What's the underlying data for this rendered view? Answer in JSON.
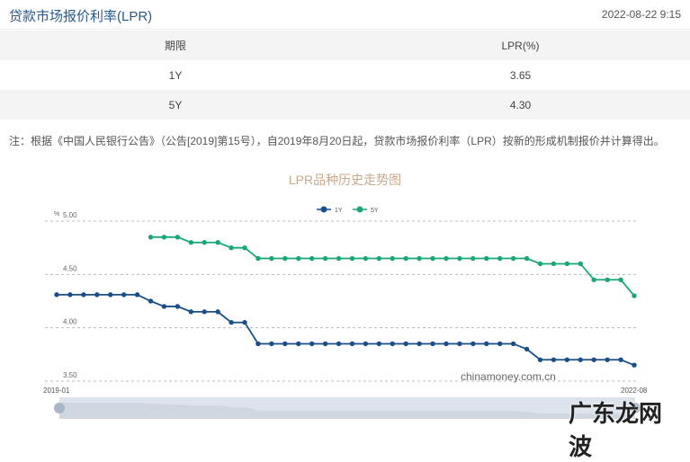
{
  "header": {
    "title": "贷款市场报价利率(LPR)",
    "timestamp": "2022-08-22 9:15"
  },
  "table": {
    "columns": [
      "期限",
      "LPR(%)"
    ],
    "rows": [
      [
        "1Y",
        "3.65"
      ],
      [
        "5Y",
        "4.30"
      ]
    ]
  },
  "note": "注：根据《中国人民银行公告》（公告[2019]第15号），自2019年8月20日起，贷款市场报价利率（LPR）按新的形成机制报价并计算得出。",
  "watermark": "chinamoney.com.cn",
  "brand_watermark": "广东龙网 波",
  "chart_data": {
    "type": "line",
    "title": "LPR品种历史走势图",
    "ylabel": "%",
    "ylim": [
      3.5,
      5.0
    ],
    "yticks": [
      "5.00",
      "4.50",
      "4.00",
      "3.50"
    ],
    "x_start_label": "2019-01",
    "x_end_label": "2022-08",
    "legend_position": "top",
    "grid": true,
    "series": [
      {
        "name": "1Y",
        "color": "#1a4f8a",
        "values": [
          4.31,
          4.31,
          4.31,
          4.31,
          4.31,
          4.31,
          4.31,
          4.25,
          4.2,
          4.2,
          4.15,
          4.15,
          4.15,
          4.05,
          4.05,
          3.85,
          3.85,
          3.85,
          3.85,
          3.85,
          3.85,
          3.85,
          3.85,
          3.85,
          3.85,
          3.85,
          3.85,
          3.85,
          3.85,
          3.85,
          3.85,
          3.85,
          3.85,
          3.85,
          3.85,
          3.8,
          3.7,
          3.7,
          3.7,
          3.7,
          3.7,
          3.7,
          3.7,
          3.65
        ]
      },
      {
        "name": "5Y",
        "color": "#1aa67a",
        "values": [
          null,
          null,
          null,
          null,
          null,
          null,
          null,
          4.85,
          4.85,
          4.85,
          4.8,
          4.8,
          4.8,
          4.75,
          4.75,
          4.65,
          4.65,
          4.65,
          4.65,
          4.65,
          4.65,
          4.65,
          4.65,
          4.65,
          4.65,
          4.65,
          4.65,
          4.65,
          4.65,
          4.65,
          4.65,
          4.65,
          4.65,
          4.65,
          4.65,
          4.65,
          4.6,
          4.6,
          4.6,
          4.6,
          4.45,
          4.45,
          4.45,
          4.3
        ]
      }
    ]
  }
}
